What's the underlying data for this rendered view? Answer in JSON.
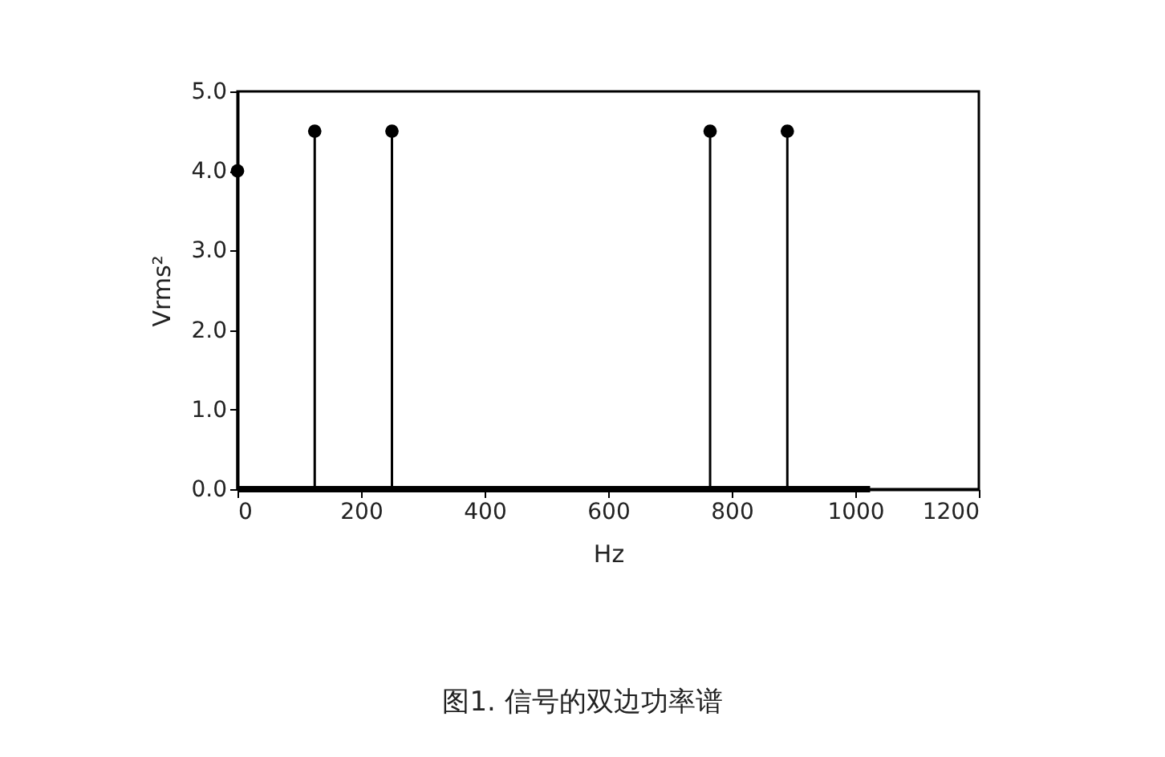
{
  "chart_data": {
    "type": "lollipop",
    "xlabel": "Hz",
    "ylabel": "Vrms²",
    "series": [
      {
        "color": "#000000",
        "marker": "circle",
        "x": [
          0,
          125,
          250,
          765,
          890
        ],
        "values": [
          4.0,
          4.5,
          4.5,
          4.5,
          4.5
        ]
      },
      {
        "type": "line",
        "color": "#000000",
        "marker": "none",
        "x": [
          0,
          1024
        ],
        "values": [
          0,
          0
        ]
      }
    ],
    "xlim": [
      0,
      1200
    ],
    "xticks": [
      0,
      200,
      400,
      600,
      800,
      1000,
      1200
    ],
    "ylim": [
      0,
      5
    ],
    "yticks": [
      {
        "value": 0,
        "label": "0.0"
      },
      {
        "value": 1,
        "label": "1.0"
      },
      {
        "value": 2,
        "label": "2.0"
      },
      {
        "value": 3,
        "label": "3.0"
      },
      {
        "value": 4,
        "label": "4.0"
      },
      {
        "value": 5,
        "label": "5.0"
      }
    ],
    "grid": false,
    "annotations": [
      "图1. 信号的双边功率谱"
    ]
  }
}
